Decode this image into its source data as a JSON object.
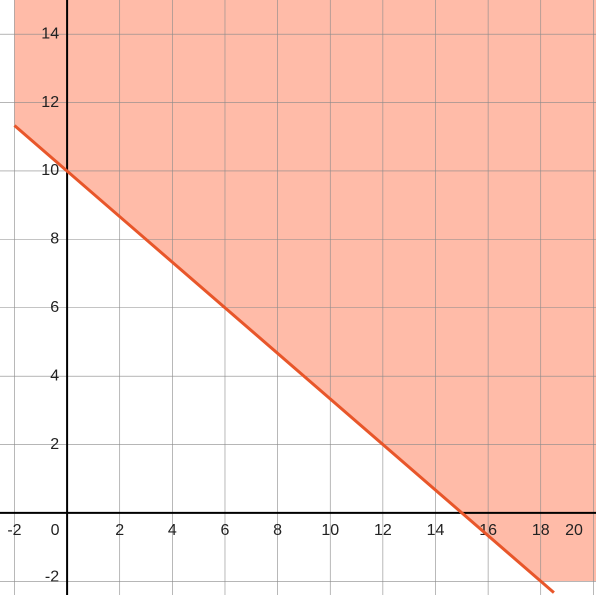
{
  "chart_data": {
    "type": "line",
    "xlim": [
      -2.55,
      20.1
    ],
    "ylim": [
      -2.4,
      15
    ],
    "xticks": [
      -2,
      0,
      2,
      4,
      6,
      8,
      10,
      12,
      14,
      16,
      18,
      20
    ],
    "yticks": [
      -2,
      2,
      4,
      6,
      8,
      10,
      12,
      14
    ],
    "grid": true,
    "area": {
      "color": "#ffbba8",
      "x": [
        -2,
        18,
        20.1,
        20.1,
        -2
      ],
      "values": [
        11.33,
        -2,
        -2,
        15,
        15
      ]
    },
    "series": [
      {
        "color": "#e8562a",
        "x": [
          -2,
          18.5
        ],
        "values": [
          11.33,
          -2.33
        ]
      }
    ]
  }
}
